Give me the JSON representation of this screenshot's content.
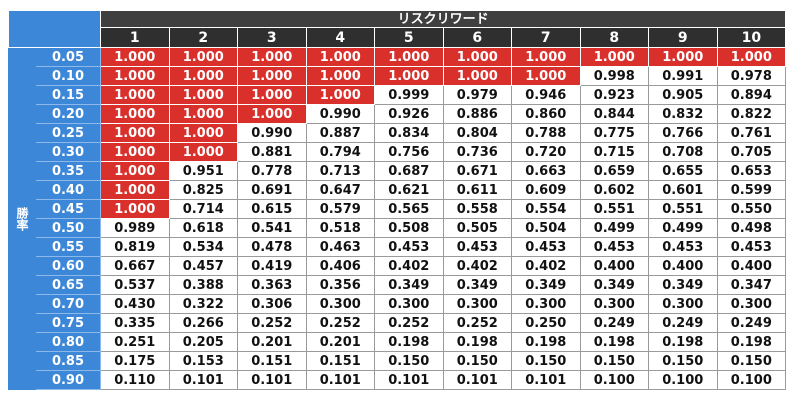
{
  "table": {
    "title": "リスクリワード",
    "side_label": "勝率",
    "columns": [
      "1",
      "2",
      "3",
      "4",
      "5",
      "6",
      "7",
      "8",
      "9",
      "10"
    ],
    "highlight_color": "#d9302c",
    "rows": [
      {
        "rate": "0.05",
        "cells": [
          "1.000",
          "1.000",
          "1.000",
          "1.000",
          "1.000",
          "1.000",
          "1.000",
          "1.000",
          "1.000",
          "1.000"
        ]
      },
      {
        "rate": "0.10",
        "cells": [
          "1.000",
          "1.000",
          "1.000",
          "1.000",
          "1.000",
          "1.000",
          "1.000",
          "0.998",
          "0.991",
          "0.978"
        ]
      },
      {
        "rate": "0.15",
        "cells": [
          "1.000",
          "1.000",
          "1.000",
          "1.000",
          "0.999",
          "0.979",
          "0.946",
          "0.923",
          "0.905",
          "0.894"
        ]
      },
      {
        "rate": "0.20",
        "cells": [
          "1.000",
          "1.000",
          "1.000",
          "0.990",
          "0.926",
          "0.886",
          "0.860",
          "0.844",
          "0.832",
          "0.822"
        ]
      },
      {
        "rate": "0.25",
        "cells": [
          "1.000",
          "1.000",
          "0.990",
          "0.887",
          "0.834",
          "0.804",
          "0.788",
          "0.775",
          "0.766",
          "0.761"
        ]
      },
      {
        "rate": "0.30",
        "cells": [
          "1.000",
          "1.000",
          "0.881",
          "0.794",
          "0.756",
          "0.736",
          "0.720",
          "0.715",
          "0.708",
          "0.705"
        ]
      },
      {
        "rate": "0.35",
        "cells": [
          "1.000",
          "0.951",
          "0.778",
          "0.713",
          "0.687",
          "0.671",
          "0.663",
          "0.659",
          "0.655",
          "0.653"
        ]
      },
      {
        "rate": "0.40",
        "cells": [
          "1.000",
          "0.825",
          "0.691",
          "0.647",
          "0.621",
          "0.611",
          "0.609",
          "0.602",
          "0.601",
          "0.599"
        ]
      },
      {
        "rate": "0.45",
        "cells": [
          "1.000",
          "0.714",
          "0.615",
          "0.579",
          "0.565",
          "0.558",
          "0.554",
          "0.551",
          "0.551",
          "0.550"
        ]
      },
      {
        "rate": "0.50",
        "cells": [
          "0.989",
          "0.618",
          "0.541",
          "0.518",
          "0.508",
          "0.505",
          "0.504",
          "0.499",
          "0.499",
          "0.498"
        ]
      },
      {
        "rate": "0.55",
        "cells": [
          "0.819",
          "0.534",
          "0.478",
          "0.463",
          "0.453",
          "0.453",
          "0.453",
          "0.453",
          "0.453",
          "0.453"
        ]
      },
      {
        "rate": "0.60",
        "cells": [
          "0.667",
          "0.457",
          "0.419",
          "0.406",
          "0.402",
          "0.402",
          "0.402",
          "0.400",
          "0.400",
          "0.400"
        ]
      },
      {
        "rate": "0.65",
        "cells": [
          "0.537",
          "0.388",
          "0.363",
          "0.356",
          "0.349",
          "0.349",
          "0.349",
          "0.349",
          "0.349",
          "0.347"
        ]
      },
      {
        "rate": "0.70",
        "cells": [
          "0.430",
          "0.322",
          "0.306",
          "0.300",
          "0.300",
          "0.300",
          "0.300",
          "0.300",
          "0.300",
          "0.300"
        ]
      },
      {
        "rate": "0.75",
        "cells": [
          "0.335",
          "0.266",
          "0.252",
          "0.252",
          "0.252",
          "0.252",
          "0.250",
          "0.249",
          "0.249",
          "0.249"
        ]
      },
      {
        "rate": "0.80",
        "cells": [
          "0.251",
          "0.205",
          "0.201",
          "0.201",
          "0.198",
          "0.198",
          "0.198",
          "0.198",
          "0.198",
          "0.198"
        ]
      },
      {
        "rate": "0.85",
        "cells": [
          "0.175",
          "0.153",
          "0.151",
          "0.151",
          "0.150",
          "0.150",
          "0.150",
          "0.150",
          "0.150",
          "0.150"
        ]
      },
      {
        "rate": "0.90",
        "cells": [
          "0.110",
          "0.101",
          "0.101",
          "0.101",
          "0.101",
          "0.101",
          "0.101",
          "0.100",
          "0.100",
          "0.100"
        ]
      }
    ]
  }
}
